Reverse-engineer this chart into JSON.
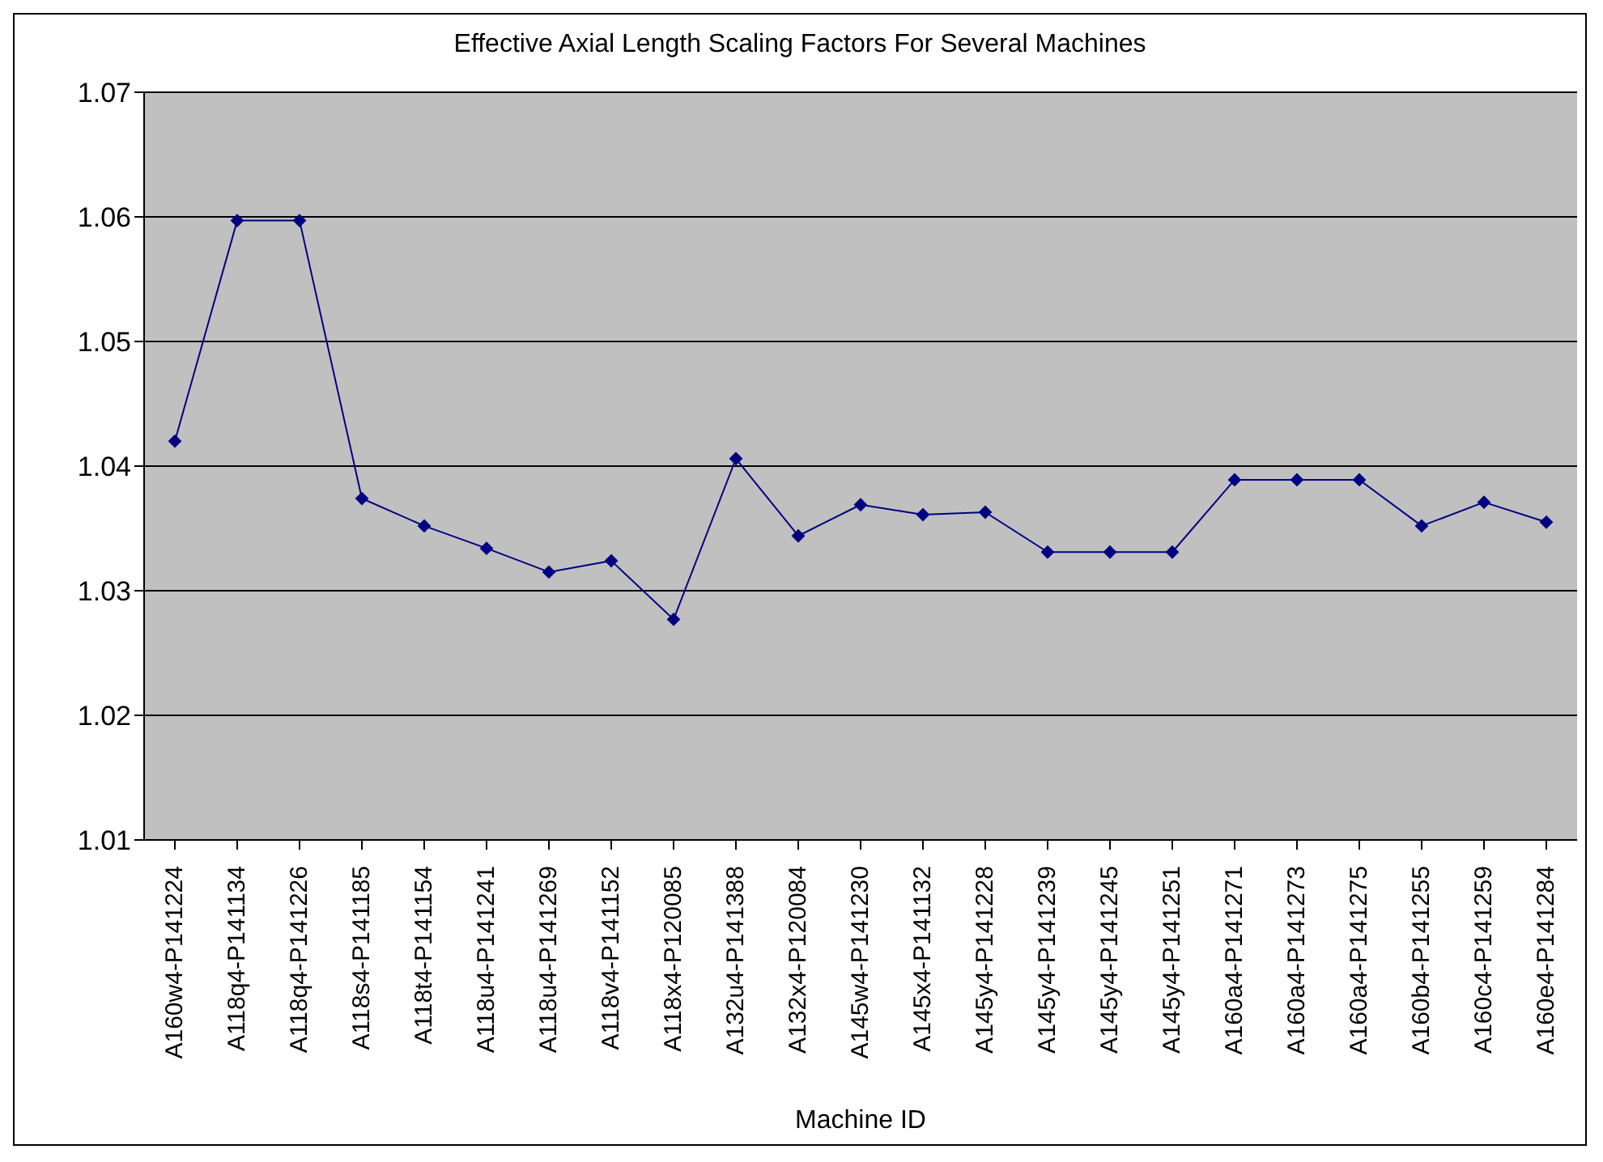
{
  "chart_data": {
    "type": "line",
    "title": "Effective Axial Length Scaling Factors For Several Machines",
    "xlabel": "Machine ID",
    "categories": [
      "A160w4-P141224",
      "A118q4-P141134",
      "A118q4-P141226",
      "A118s4-P141185",
      "A118t4-P141154",
      "A118u4-P141241",
      "A118u4-P141269",
      "A118v4-P141152",
      "A118x4-P120085",
      "A132u4-P141388",
      "A132x4-P120084",
      "A145w4-P141230",
      "A145x4-P141132",
      "A145y4-P141228",
      "A145y4-P141239",
      "A145y4-P141245",
      "A145y4-P141251",
      "A160a4-P141271",
      "A160a4-P141273",
      "A160a4-P141275",
      "A160b4-P141255",
      "A160c4-P141259",
      "A160e4-P141284"
    ],
    "series": [
      {
        "color": "#000080",
        "values": [
          1.042,
          1.0597,
          1.0597,
          1.0374,
          1.0352,
          1.0334,
          1.0315,
          1.0324,
          1.0277,
          1.0406,
          1.0344,
          1.0369,
          1.0361,
          1.0363,
          1.0331,
          1.0331,
          1.0331,
          1.0389,
          1.0389,
          1.0389,
          1.0352,
          1.0371,
          1.0355
        ]
      }
    ],
    "ylim": [
      1.01,
      1.07
    ],
    "yticks": [
      1.01,
      1.02,
      1.03,
      1.04,
      1.05,
      1.06,
      1.07
    ],
    "grid": "y",
    "legend": false,
    "marker": "diamond",
    "line_style": "solid"
  }
}
